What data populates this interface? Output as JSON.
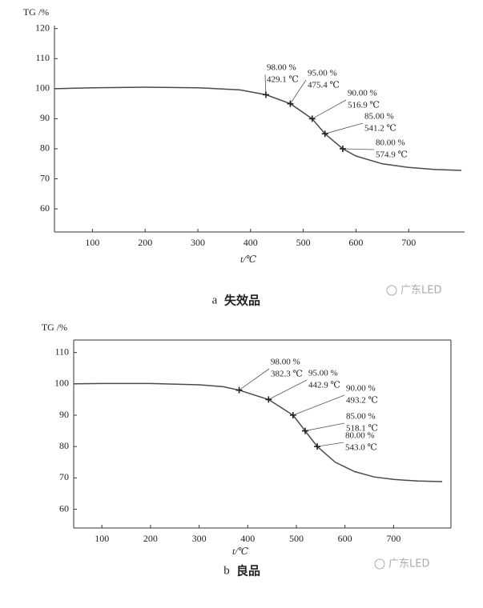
{
  "chart_data": [
    {
      "type": "line",
      "y_label": "TG /%",
      "x_label": "t/℃",
      "caption_letter": "a",
      "caption": "失效品",
      "x": [
        28,
        100,
        200,
        300,
        380,
        429.1,
        475.4,
        516.9,
        541.2,
        574.9,
        600,
        650,
        700,
        750,
        800
      ],
      "values": [
        100,
        100.3,
        100.5,
        100.3,
        99.6,
        98,
        95,
        90,
        85,
        80,
        77.6,
        75,
        73.8,
        73.1,
        72.8
      ],
      "markers": {
        "x": [
          429.1,
          475.4,
          516.9,
          541.2,
          574.9
        ],
        "values": [
          98,
          95,
          90,
          85,
          80
        ],
        "value_labels": [
          "98.00 %",
          "95.00 %",
          "90.00 %",
          "85.00 %",
          "80.00 %"
        ],
        "x_labels": [
          "429.1 ℃",
          "475.4 ℃",
          "516.9 ℃",
          "541.2 ℃",
          "574.9 ℃"
        ]
      },
      "xlim": [
        28,
        806
      ],
      "ylim": [
        52.3,
        121
      ],
      "xticks": [
        100,
        200,
        300,
        400,
        500,
        600,
        700
      ],
      "yticks": [
        60,
        70,
        80,
        90,
        100,
        110,
        120
      ],
      "color": "#4a4a4a",
      "box": false
    },
    {
      "type": "line",
      "y_label": "TG /%",
      "x_label": "t/℃",
      "caption_letter": "b",
      "caption": "良品",
      "x": [
        42,
        100,
        200,
        300,
        350,
        382.3,
        442.9,
        493.2,
        518.1,
        543,
        580,
        620,
        660,
        700,
        750,
        800
      ],
      "values": [
        100,
        100.1,
        100.1,
        99.7,
        99.1,
        98,
        95,
        90,
        85,
        80,
        75,
        72,
        70.3,
        69.5,
        69,
        68.8
      ],
      "markers": {
        "x": [
          382.3,
          442.9,
          493.2,
          518.1,
          543
        ],
        "values": [
          98,
          95,
          90,
          85,
          80
        ],
        "value_labels": [
          "98.00 %",
          "95.00 %",
          "90.00 %",
          "85.00 %",
          "80.00 %"
        ],
        "x_labels": [
          "382.3 ℃",
          "442.9 ℃",
          "493.2 ℃",
          "518.1 ℃",
          "543.0 ℃"
        ]
      },
      "xlim": [
        42,
        818
      ],
      "ylim": [
        54,
        114
      ],
      "xticks": [
        100,
        200,
        300,
        400,
        500,
        600,
        700
      ],
      "yticks": [
        60,
        70,
        80,
        90,
        100,
        110
      ],
      "color": "#4a4a4a",
      "box": true
    }
  ],
  "watermark": "广东LED"
}
